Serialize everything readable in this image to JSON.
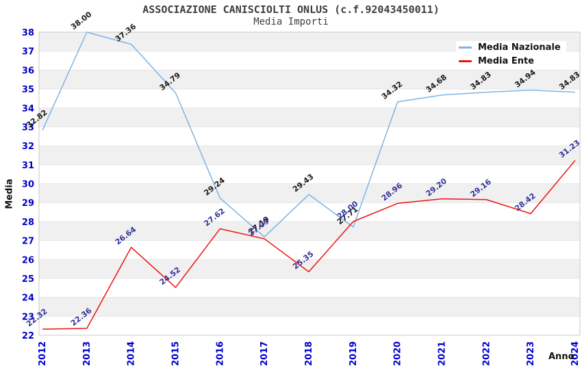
{
  "header": {
    "title": "ASSOCIAZIONE CANISCIOLTI ONLUS (c.f.92043450011)",
    "subtitle": "Media Importi"
  },
  "axes": {
    "y_title": "Media",
    "x_title": "Anno",
    "y_tick_min": 22,
    "y_tick_max": 38,
    "y_tick_step": 1,
    "tick_color": "#0000cc"
  },
  "legend": {
    "items": [
      {
        "label": "Media Nazionale",
        "color": "#7fb2e5"
      },
      {
        "label": "Media Ente",
        "color": "#ee1111"
      }
    ]
  },
  "chart_data": {
    "type": "line",
    "title": "ASSOCIAZIONE CANISCIOLTI ONLUS (c.f.92043450011)",
    "subtitle": "Media Importi",
    "xlabel": "Anno",
    "ylabel": "Media",
    "x": [
      2012,
      2013,
      2014,
      2015,
      2016,
      2017,
      2018,
      2019,
      2020,
      2021,
      2022,
      2023,
      2024
    ],
    "series": [
      {
        "name": "Media Nazionale",
        "color": "#7fb2e5",
        "label_color": "#1a1a1a",
        "values": [
          32.82,
          38.0,
          37.36,
          34.79,
          29.24,
          27.19,
          29.43,
          27.71,
          34.32,
          34.68,
          34.83,
          34.94,
          34.83
        ]
      },
      {
        "name": "Media Ente",
        "color": "#ee1111",
        "label_color": "#333399",
        "values": [
          22.32,
          22.36,
          26.64,
          24.52,
          27.62,
          27.09,
          25.35,
          28.0,
          28.96,
          29.2,
          29.16,
          28.42,
          31.23
        ]
      }
    ],
    "ylim": [
      22,
      38
    ],
    "grid": "horizontal-only",
    "band_fill": "#f0f0f0",
    "grid_color": "#e7e7e7",
    "border_color": "#c9c9c9",
    "legend_position": "top-right"
  }
}
